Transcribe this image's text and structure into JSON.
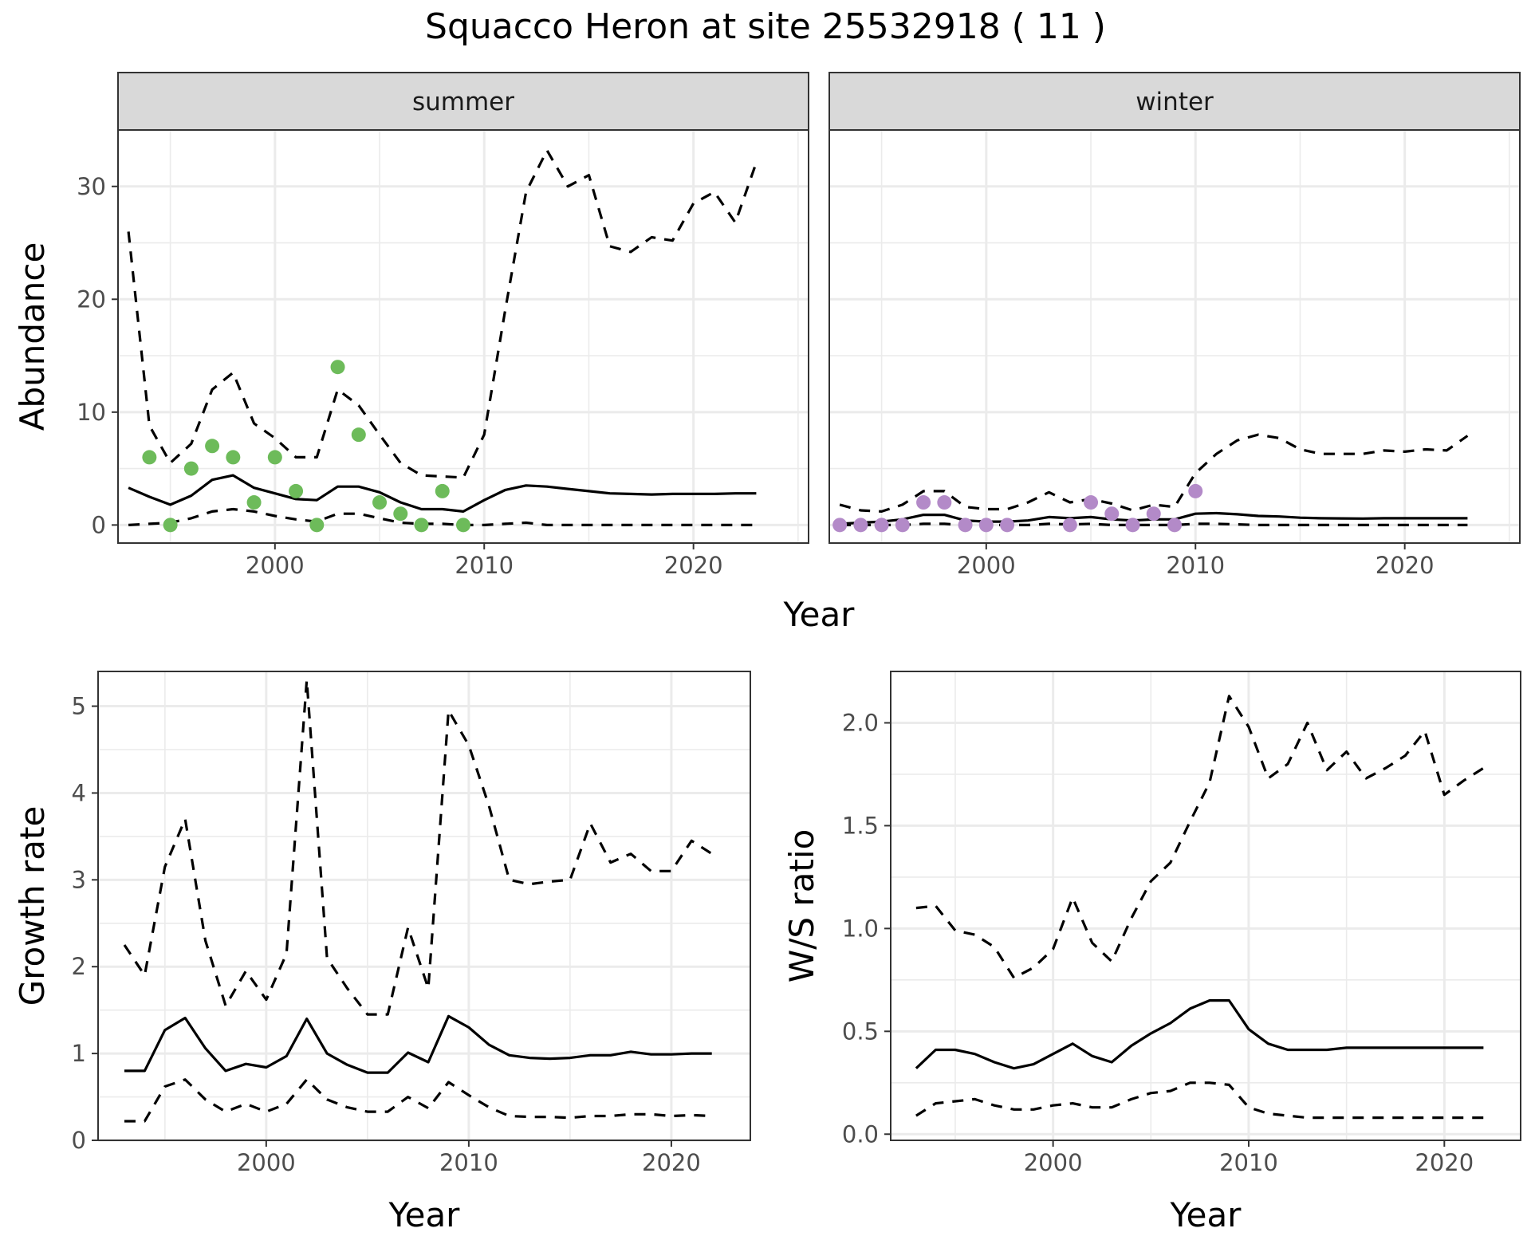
{
  "title": "Squacco Heron at site 25532918 ( 11 )",
  "chart_data": [
    {
      "id": "abundance",
      "type": "line",
      "ylabel": "Abundance",
      "xlabel": "Year",
      "xlim": [
        1992.5,
        2025.5
      ],
      "ylim": [
        -1.6,
        35
      ],
      "xticks": [
        2000,
        2010,
        2020
      ],
      "yticks": [
        0,
        10,
        20,
        30
      ],
      "grid": true,
      "facets": [
        {
          "label": "summer",
          "point_color": "#6dbb5a",
          "x": [
            1993,
            1994,
            1995,
            1996,
            1997,
            1998,
            1999,
            2000,
            2001,
            2002,
            2003,
            2004,
            2005,
            2006,
            2007,
            2008,
            2009,
            2010,
            2011,
            2012,
            2013,
            2014,
            2015,
            2016,
            2017,
            2018,
            2019,
            2020,
            2021,
            2022,
            2023
          ],
          "mean": [
            3.3,
            2.5,
            1.8,
            2.6,
            4.0,
            4.4,
            3.3,
            2.8,
            2.3,
            2.2,
            3.4,
            3.4,
            2.9,
            2.0,
            1.4,
            1.4,
            1.2,
            2.2,
            3.1,
            3.5,
            3.4,
            3.2,
            3.0,
            2.8,
            2.75,
            2.7,
            2.75,
            2.75,
            2.75,
            2.8,
            2.8
          ],
          "upper": [
            26,
            8.8,
            5.5,
            7.2,
            12,
            13.5,
            9.0,
            7.7,
            6.0,
            6.0,
            12,
            10.6,
            8.0,
            5.5,
            4.4,
            4.3,
            4.2,
            8.0,
            19,
            29.5,
            33.2,
            30,
            31,
            24.7,
            24.2,
            25.5,
            25.2,
            28.5,
            29.5,
            26.8,
            32.1
          ],
          "lower": [
            0,
            0.1,
            0.2,
            0.6,
            1.2,
            1.4,
            1.2,
            0.8,
            0.5,
            0.3,
            1.0,
            1.0,
            0.6,
            0.2,
            0.1,
            0.1,
            0,
            0,
            0.1,
            0.2,
            0,
            0,
            0,
            0,
            0,
            0,
            0,
            0,
            0,
            0,
            0
          ],
          "points": [
            [
              1994,
              6
            ],
            [
              1995,
              0
            ],
            [
              1996,
              5
            ],
            [
              1997,
              7
            ],
            [
              1998,
              6
            ],
            [
              1999,
              2
            ],
            [
              2000,
              6
            ],
            [
              2001,
              3
            ],
            [
              2002,
              0
            ],
            [
              2003,
              14
            ],
            [
              2004,
              8
            ],
            [
              2005,
              2
            ],
            [
              2006,
              1
            ],
            [
              2007,
              0
            ],
            [
              2008,
              3
            ],
            [
              2009,
              0
            ]
          ]
        },
        {
          "label": "winter",
          "point_color": "#b38ac8",
          "x": [
            1993,
            1994,
            1995,
            1996,
            1997,
            1998,
            1999,
            2000,
            2001,
            2002,
            2003,
            2004,
            2005,
            2006,
            2007,
            2008,
            2009,
            2010,
            2011,
            2012,
            2013,
            2014,
            2015,
            2016,
            2017,
            2018,
            2019,
            2020,
            2021,
            2022,
            2023
          ],
          "mean": [
            0.1,
            0.2,
            0.3,
            0.5,
            0.9,
            0.9,
            0.4,
            0.3,
            0.3,
            0.4,
            0.7,
            0.6,
            0.7,
            0.5,
            0.4,
            0.5,
            0.5,
            1.0,
            1.05,
            0.95,
            0.8,
            0.75,
            0.65,
            0.6,
            0.58,
            0.57,
            0.6,
            0.6,
            0.6,
            0.6,
            0.6
          ],
          "upper": [
            1.8,
            1.3,
            1.2,
            1.8,
            3.0,
            3.0,
            1.6,
            1.4,
            1.4,
            2.0,
            2.9,
            2.0,
            2.3,
            1.9,
            1.3,
            1.8,
            1.6,
            4.6,
            6.3,
            7.5,
            8.0,
            7.7,
            6.7,
            6.3,
            6.3,
            6.3,
            6.6,
            6.5,
            6.7,
            6.6,
            7.9
          ],
          "lower": [
            0,
            0,
            0,
            0,
            0.1,
            0.1,
            0,
            0,
            0,
            0,
            0.1,
            0.05,
            0.1,
            0,
            0,
            0,
            0,
            0.1,
            0.1,
            0.05,
            0,
            0,
            0,
            0,
            0,
            0,
            0,
            0,
            0,
            0,
            0
          ],
          "points": [
            [
              1993,
              0
            ],
            [
              1994,
              0
            ],
            [
              1995,
              0
            ],
            [
              1996,
              0
            ],
            [
              1997,
              2
            ],
            [
              1998,
              2
            ],
            [
              1999,
              0
            ],
            [
              2000,
              0
            ],
            [
              2001,
              0
            ],
            [
              2004,
              0
            ],
            [
              2005,
              2
            ],
            [
              2006,
              1
            ],
            [
              2007,
              0
            ],
            [
              2008,
              1
            ],
            [
              2009,
              0
            ],
            [
              2010,
              3
            ]
          ]
        }
      ]
    },
    {
      "id": "growth",
      "type": "line",
      "ylabel": "Growth rate",
      "xlabel": "Year",
      "xlim": [
        1991.7,
        2023.9
      ],
      "ylim": [
        0,
        5.4
      ],
      "xticks": [
        2000,
        2010,
        2020
      ],
      "yticks": [
        0,
        1,
        2,
        3,
        4,
        5
      ],
      "grid": true,
      "x": [
        1993,
        1994,
        1995,
        1996,
        1997,
        1998,
        1999,
        2000,
        2001,
        2002,
        2003,
        2004,
        2005,
        2006,
        2007,
        2008,
        2009,
        2010,
        2011,
        2012,
        2013,
        2014,
        2015,
        2016,
        2017,
        2018,
        2019,
        2020,
        2021,
        2022
      ],
      "mean": [
        0.8,
        0.8,
        1.27,
        1.41,
        1.06,
        0.8,
        0.88,
        0.84,
        0.97,
        1.4,
        1.0,
        0.87,
        0.78,
        0.78,
        1.01,
        0.9,
        1.43,
        1.3,
        1.1,
        0.98,
        0.95,
        0.94,
        0.95,
        0.98,
        0.98,
        1.02,
        0.99,
        0.99,
        1.0,
        1.0
      ],
      "upper": [
        2.25,
        1.9,
        3.15,
        3.7,
        2.3,
        1.55,
        1.95,
        1.62,
        2.15,
        5.3,
        2.1,
        1.75,
        1.45,
        1.45,
        2.45,
        1.75,
        4.95,
        4.55,
        3.85,
        3.0,
        2.95,
        2.98,
        3.0,
        3.65,
        3.2,
        3.3,
        3.1,
        3.1,
        3.45,
        3.3
      ],
      "lower": [
        0.22,
        0.22,
        0.62,
        0.7,
        0.47,
        0.33,
        0.42,
        0.33,
        0.42,
        0.7,
        0.47,
        0.38,
        0.33,
        0.33,
        0.5,
        0.37,
        0.67,
        0.52,
        0.38,
        0.28,
        0.27,
        0.27,
        0.26,
        0.28,
        0.28,
        0.3,
        0.3,
        0.28,
        0.29,
        0.28
      ]
    },
    {
      "id": "ws_ratio",
      "type": "line",
      "ylabel": "W/S ratio",
      "xlabel": "Year",
      "xlim": [
        1991.7,
        2023.9
      ],
      "ylim": [
        -0.03,
        2.25
      ],
      "xticks": [
        2000,
        2010,
        2020
      ],
      "yticks": [
        0.0,
        0.5,
        1.0,
        1.5,
        2.0
      ],
      "ytick_labels": [
        "0.0",
        "0.5",
        "1.0",
        "1.5",
        "2.0"
      ],
      "grid": true,
      "x": [
        1993,
        1994,
        1995,
        1996,
        1997,
        1998,
        1999,
        2000,
        2001,
        2002,
        2003,
        2004,
        2005,
        2006,
        2007,
        2008,
        2009,
        2010,
        2011,
        2012,
        2013,
        2014,
        2015,
        2016,
        2017,
        2018,
        2019,
        2020,
        2021,
        2022
      ],
      "mean": [
        0.32,
        0.41,
        0.41,
        0.39,
        0.35,
        0.32,
        0.34,
        0.39,
        0.44,
        0.38,
        0.35,
        0.43,
        0.49,
        0.54,
        0.61,
        0.65,
        0.65,
        0.51,
        0.44,
        0.41,
        0.41,
        0.41,
        0.42,
        0.42,
        0.42,
        0.42,
        0.42,
        0.42,
        0.42,
        0.42
      ],
      "upper": [
        1.1,
        1.11,
        0.99,
        0.97,
        0.91,
        0.76,
        0.81,
        0.9,
        1.15,
        0.93,
        0.84,
        1.05,
        1.23,
        1.32,
        1.52,
        1.71,
        2.13,
        1.98,
        1.73,
        1.8,
        2.0,
        1.77,
        1.86,
        1.73,
        1.78,
        1.84,
        1.96,
        1.65,
        1.72,
        1.78
      ],
      "lower": [
        0.09,
        0.15,
        0.16,
        0.17,
        0.14,
        0.12,
        0.12,
        0.14,
        0.15,
        0.13,
        0.13,
        0.17,
        0.2,
        0.21,
        0.25,
        0.25,
        0.24,
        0.13,
        0.1,
        0.09,
        0.08,
        0.08,
        0.08,
        0.08,
        0.08,
        0.08,
        0.08,
        0.08,
        0.08,
        0.08
      ]
    }
  ]
}
